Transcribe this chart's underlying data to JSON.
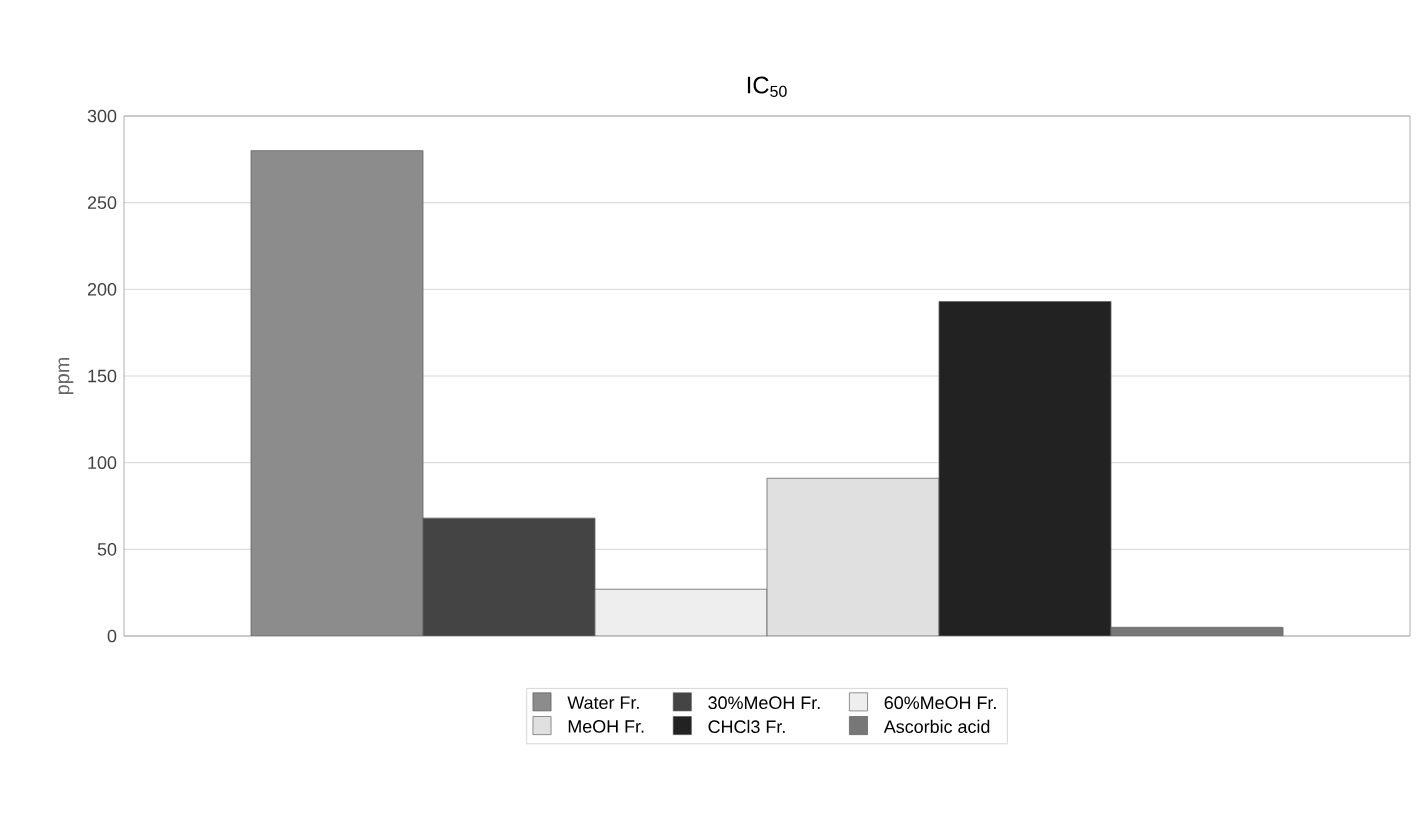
{
  "chart_data": {
    "type": "bar",
    "title": "IC$_{50}$",
    "ylabel": "ppm",
    "categories": [
      null
    ],
    "series": [
      {
        "name": "Water Fr.",
        "color": "#8c8c8c",
        "values": [
          280
        ]
      },
      {
        "name": "30%MeOH Fr.",
        "color": "#444444",
        "values": [
          68
        ]
      },
      {
        "name": "60%MeOH Fr.",
        "color": "#eeeeee",
        "values": [
          27
        ]
      },
      {
        "name": "MeOH Fr.",
        "color": "#e0e0e0",
        "values": [
          91
        ]
      },
      {
        "name": "CHCl3 Fr.",
        "color": "#222222",
        "values": [
          193
        ]
      },
      {
        "name": "Ascorbic acid",
        "color": "#777777",
        "values": [
          5
        ]
      }
    ],
    "ylim": [
      0,
      300
    ],
    "yticks": [
      0,
      50,
      100,
      150,
      200,
      250,
      300
    ],
    "grid": "y",
    "legend": "bottom"
  }
}
